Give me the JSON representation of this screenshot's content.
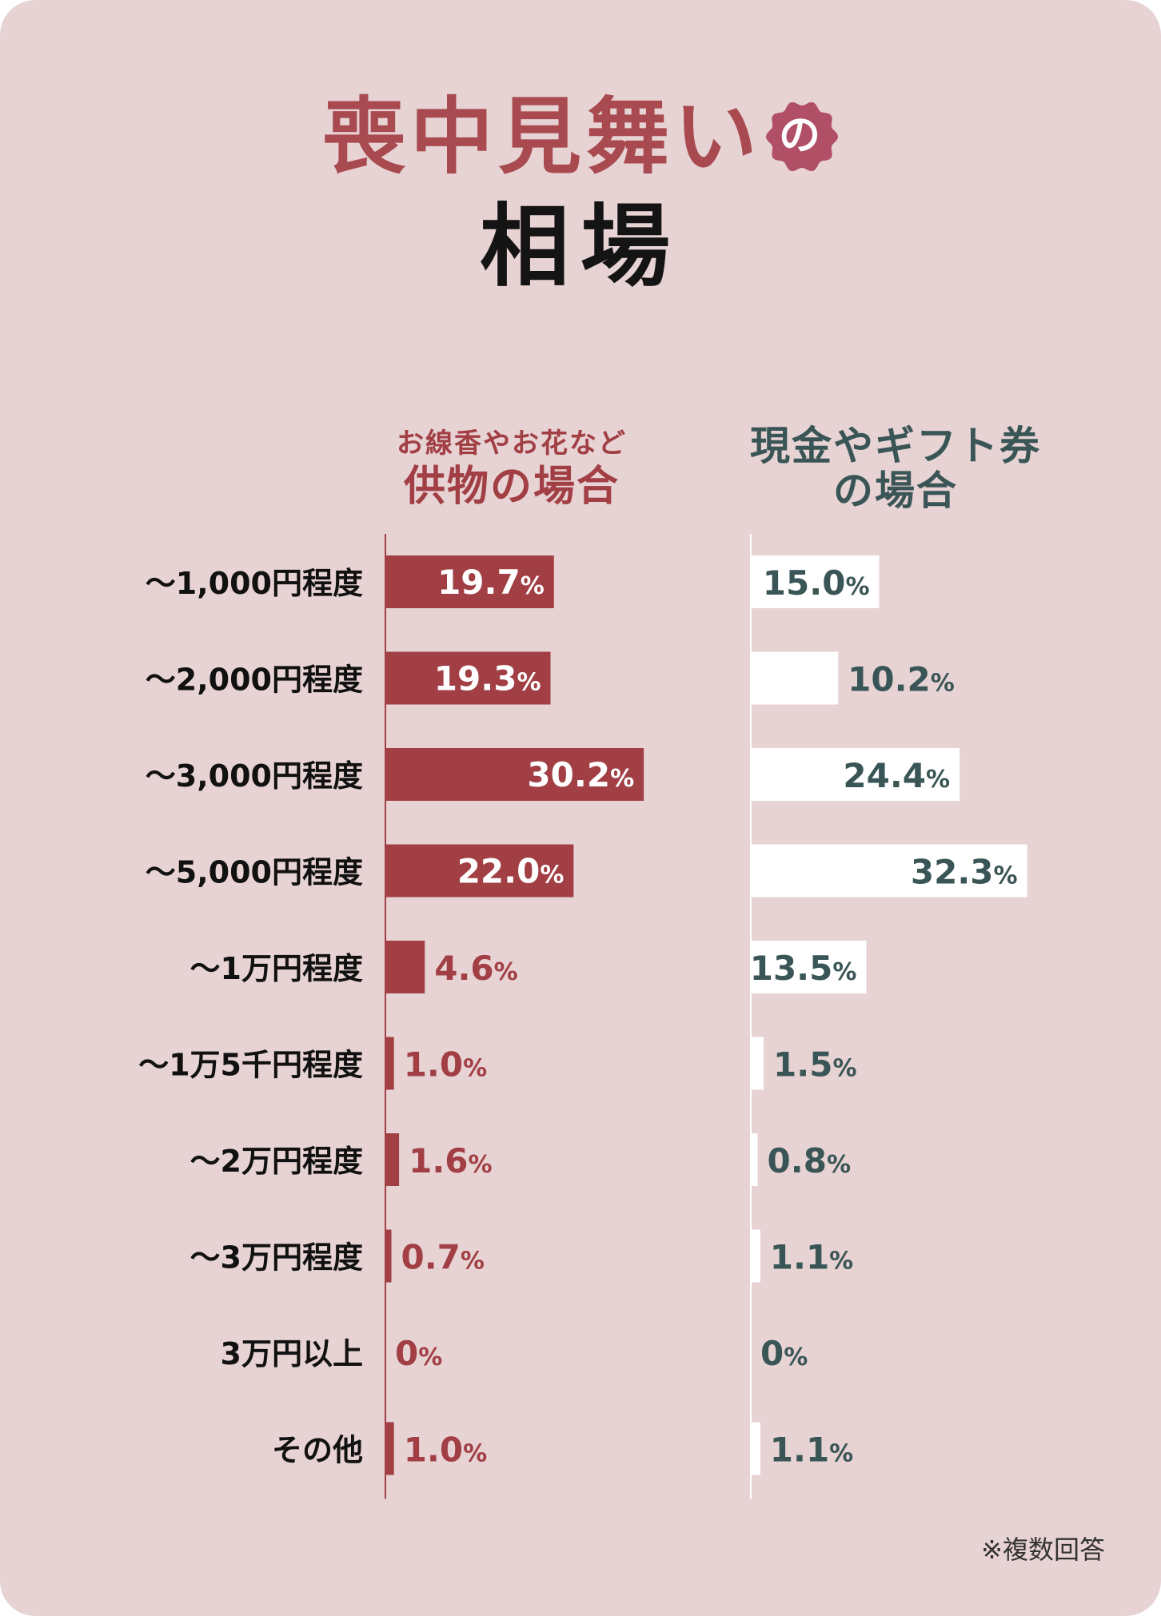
{
  "title": {
    "line1": "喪中見舞い",
    "badge_text": "の",
    "line2": "相場"
  },
  "colors": {
    "background": "#e8d3d4",
    "gift_bar": "#a13f45",
    "cash_bar": "#ffffff",
    "cash_text": "#3a5556",
    "title_accent": "#a84a50",
    "badge": "#b04f66"
  },
  "footnote": "※複数回答",
  "chart_data": {
    "type": "bar",
    "orientation": "horizontal",
    "unit": "%",
    "categories": [
      "～1,000円程度",
      "～2,000円程度",
      "～3,000円程度",
      "～5,000円程度",
      "～1万円程度",
      "～1万5千円程度",
      "～2万円程度",
      "～3万円程度",
      "3万円以上",
      "その他"
    ],
    "series": [
      {
        "name": "供物の場合",
        "subtitle": "お線香やお花など",
        "values": [
          19.7,
          19.3,
          30.2,
          22.0,
          4.6,
          1.0,
          1.6,
          0.7,
          0,
          1.0
        ],
        "labels": [
          "19.7",
          "19.3",
          "30.2",
          "22.0",
          "4.6",
          "1.0",
          "1.6",
          "0.7",
          "0",
          "1.0"
        ]
      },
      {
        "name": "現金やギフト券の場合",
        "name_lines": [
          "現金やギフト券",
          "の場合"
        ],
        "values": [
          15.0,
          10.2,
          24.4,
          32.3,
          13.5,
          1.5,
          0.8,
          1.1,
          0,
          1.1
        ],
        "labels": [
          "15.0",
          "10.2",
          "24.4",
          "32.3",
          "13.5",
          "1.5",
          "0.8",
          "1.1",
          "0",
          "1.1"
        ]
      }
    ],
    "xlim": [
      0,
      35
    ]
  }
}
